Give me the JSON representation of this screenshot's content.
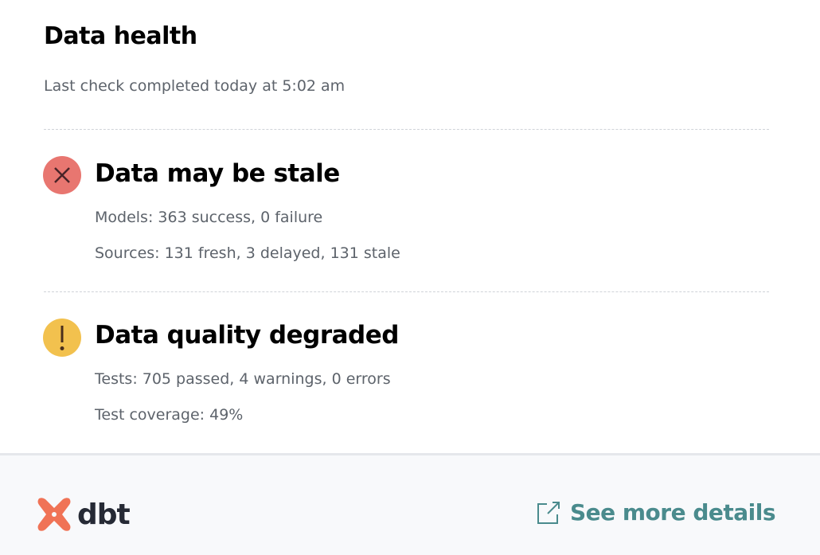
{
  "header": {
    "title": "Data health",
    "subtitle": "Last check completed today at 5:02 am"
  },
  "sections": [
    {
      "status": "error",
      "icon": "x-circle-icon",
      "color": "#e87670",
      "title": "Data may be stale",
      "lines": [
        "Models: 363 success, 0 failure",
        "Sources: 131 fresh, 3 delayed, 131 stale"
      ]
    },
    {
      "status": "warning",
      "icon": "exclamation-circle-icon",
      "color": "#f2c14e",
      "title": "Data quality degraded",
      "lines": [
        "Tests: 705 passed, 4 warnings, 0 errors",
        "Test coverage: 49%"
      ]
    }
  ],
  "footer": {
    "logo_text": "dbt",
    "logo_color": "#f07356",
    "link_label": "See more details",
    "link_color": "#4a8b8d"
  }
}
